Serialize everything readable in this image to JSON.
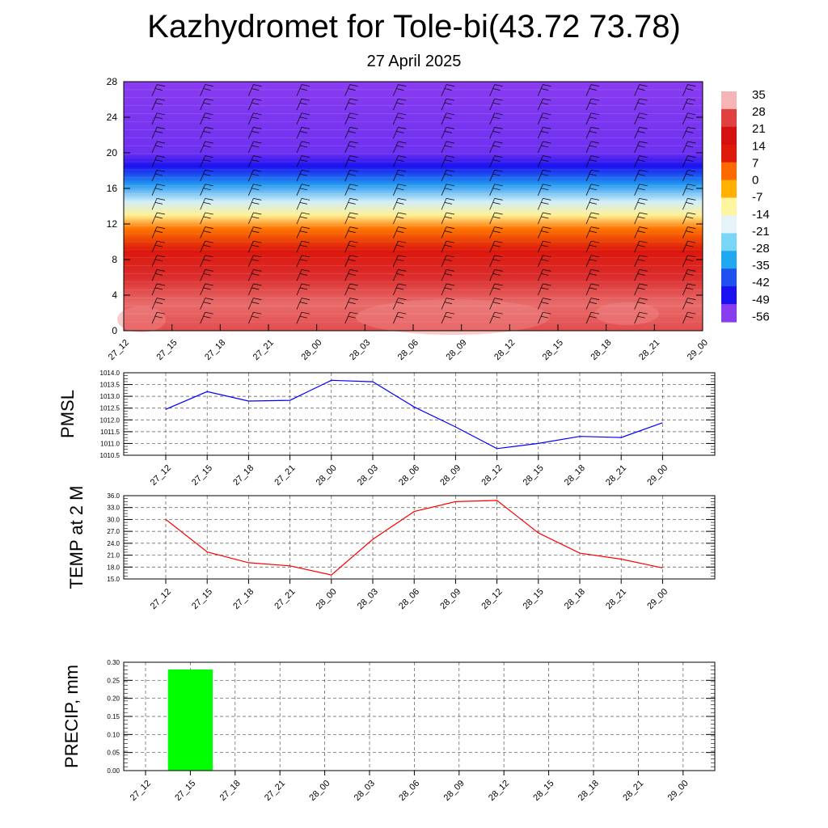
{
  "header": {
    "title": "Kazhydromet for Tole-bi(43.72 73.78)",
    "subtitle": "27 April 2025"
  },
  "chart_data": [
    {
      "type": "heatmap",
      "yticks": [
        "0",
        "4",
        "8",
        "12",
        "16",
        "20",
        "24",
        "28"
      ],
      "ylim": [
        0,
        28
      ],
      "xticks": [
        "27_12",
        "27_15",
        "27_18",
        "27_21",
        "28_00",
        "28_03",
        "28_06",
        "28_09",
        "28_12",
        "28_15",
        "28_18",
        "28_21",
        "29_00"
      ],
      "colorbar_labels": [
        "35",
        "28",
        "21",
        "14",
        "7",
        "0",
        "-7",
        "-14",
        "-21",
        "-28",
        "-35",
        "-42",
        "-49",
        "-56"
      ],
      "colorbar_colors": [
        "#f6b4b6",
        "#e04040",
        "#d41010",
        "#e01a0a",
        "#ff6a00",
        "#ffb000",
        "#fff4a0",
        "#e6f4fa",
        "#7ad6f6",
        "#20a8f0",
        "#2050f0",
        "#1a10f0",
        "#8a3cf0"
      ],
      "value_bands": [
        {
          "level": 0,
          "value": 28
        },
        {
          "level": 3,
          "value": 30
        },
        {
          "level": 6,
          "value": 24
        },
        {
          "level": 9,
          "value": 14
        },
        {
          "level": 11.5,
          "value": 2
        },
        {
          "level": 13,
          "value": -12
        },
        {
          "level": 14.5,
          "value": -22
        },
        {
          "level": 16.5,
          "value": -38
        },
        {
          "level": 18.5,
          "value": -52
        },
        {
          "level": 20,
          "value": -58
        },
        {
          "level": 28,
          "value": -60
        }
      ]
    },
    {
      "type": "line",
      "ylabel": "PMSL",
      "x": [
        "27_12",
        "27_15",
        "27_18",
        "27_21",
        "28_00",
        "28_03",
        "28_06",
        "28_09",
        "28_12",
        "28_15",
        "28_18",
        "28_21",
        "29_00"
      ],
      "yticks": [
        "1014.0",
        "1013.5",
        "1013.0",
        "1012.5",
        "1012.0",
        "1011.5",
        "1011.0",
        "1010.5"
      ],
      "ylim": [
        1010.5,
        1014.0
      ],
      "series": [
        {
          "values": [
            1012.45,
            1013.2,
            1012.8,
            1012.83,
            1013.68,
            1013.62,
            1012.55,
            1011.7,
            1010.78,
            1011.0,
            1011.3,
            1011.25,
            1011.88
          ],
          "color": "#0000ff"
        }
      ]
    },
    {
      "type": "line",
      "ylabel": "TEMP at 2 M",
      "x": [
        "27_12",
        "27_15",
        "27_18",
        "27_21",
        "28_00",
        "28_03",
        "28_06",
        "28_09",
        "28_12",
        "28_15",
        "28_18",
        "28_21",
        "29_00"
      ],
      "yticks": [
        "36.0",
        "33.0",
        "30.0",
        "27.0",
        "24.0",
        "21.0",
        "18.0",
        "15.0"
      ],
      "ylim": [
        15.0,
        36.0
      ],
      "series": [
        {
          "values": [
            30.0,
            21.8,
            19.1,
            18.3,
            16.0,
            25.0,
            32.0,
            34.5,
            34.8,
            26.6,
            21.5,
            20.0,
            17.8
          ],
          "color": "#ff0000"
        }
      ]
    },
    {
      "type": "bar",
      "ylabel": "PRECIP, mm",
      "categories": [
        "27_12",
        "27_15",
        "27_18",
        "27_21",
        "28_00",
        "28_03",
        "28_06",
        "28_09",
        "28_12",
        "28_15",
        "28_18",
        "28_21",
        "29_00"
      ],
      "values": [
        0,
        0.28,
        0,
        0,
        0,
        0,
        0,
        0,
        0,
        0,
        0,
        0,
        0
      ],
      "yticks": [
        "0.30",
        "0.25",
        "0.20",
        "0.15",
        "0.10",
        "0.05",
        "0.00"
      ],
      "ylim": [
        0,
        0.3
      ],
      "color": "#00ff00"
    }
  ]
}
